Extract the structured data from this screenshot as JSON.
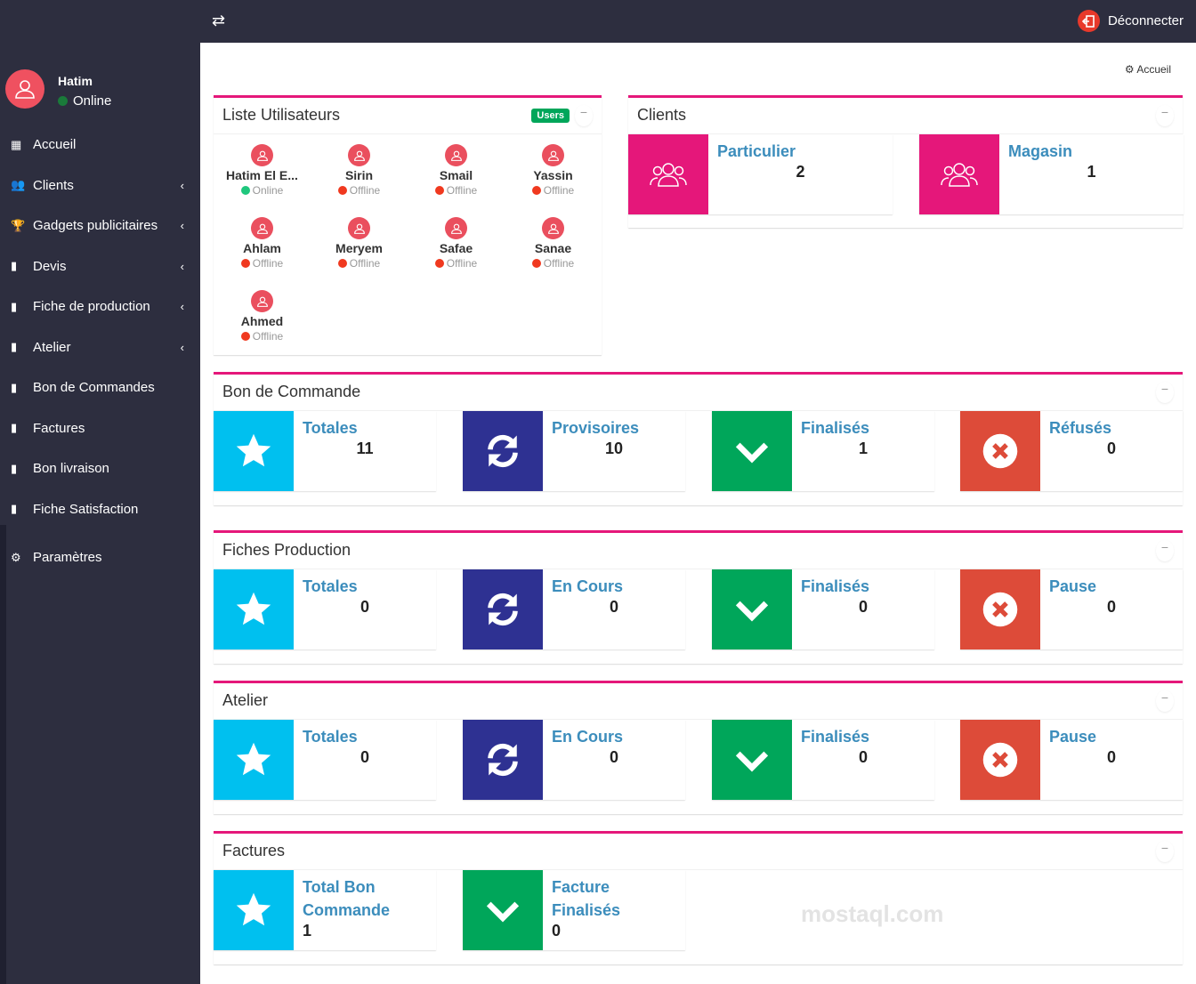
{
  "topbar": {
    "toggle_icon": "exchange-icon",
    "logout_label": "Déconnecter"
  },
  "user": {
    "name": "Hatim",
    "status": "Online"
  },
  "sidebar": {
    "items": [
      {
        "label": "Accueil",
        "icon": "th-icon",
        "chevron": false
      },
      {
        "label": "Clients",
        "icon": "users-icon",
        "chevron": true
      },
      {
        "label": "Gadgets publicitaires",
        "icon": "trophy-icon",
        "chevron": true
      },
      {
        "label": "Devis",
        "icon": "file-icon",
        "chevron": true
      },
      {
        "label": "Fiche de production",
        "icon": "file-icon",
        "chevron": true
      },
      {
        "label": "Atelier",
        "icon": "file-icon",
        "chevron": true
      },
      {
        "label": "Bon de Commandes",
        "icon": "file-icon",
        "chevron": false
      },
      {
        "label": "Factures",
        "icon": "file-icon",
        "chevron": false
      },
      {
        "label": "Bon livraison",
        "icon": "file-icon",
        "chevron": false
      },
      {
        "label": "Fiche Satisfaction",
        "icon": "file-icon",
        "chevron": false
      },
      {
        "label": "Paramètres",
        "icon": "gear-icon",
        "chevron": false
      }
    ]
  },
  "breadcrumb": "Accueil",
  "users_box": {
    "title": "Liste Utilisateurs",
    "badge": "Users",
    "users": [
      {
        "name": "Hatim El E...",
        "status": "Online"
      },
      {
        "name": "Sirin",
        "status": "Offline"
      },
      {
        "name": "Smail",
        "status": "Offline"
      },
      {
        "name": "Yassin",
        "status": "Offline"
      },
      {
        "name": "Ahlam",
        "status": "Offline"
      },
      {
        "name": "Meryem",
        "status": "Offline"
      },
      {
        "name": "Safae",
        "status": "Offline"
      },
      {
        "name": "Sanae",
        "status": "Offline"
      },
      {
        "name": "Ahmed",
        "status": "Offline"
      }
    ]
  },
  "clients_box": {
    "title": "Clients",
    "items": [
      {
        "label": "Particulier",
        "value": "2"
      },
      {
        "label": "Magasin",
        "value": "1"
      }
    ]
  },
  "bon_commande": {
    "title": "Bon de Commande",
    "items": [
      {
        "label": "Totales",
        "value": "11"
      },
      {
        "label": "Provisoires",
        "value": "10"
      },
      {
        "label": "Finalisés",
        "value": "1"
      },
      {
        "label": "Réfusés",
        "value": "0"
      }
    ]
  },
  "fiches_production": {
    "title": "Fiches Production",
    "items": [
      {
        "label": "Totales",
        "value": "0"
      },
      {
        "label": "En Cours",
        "value": "0"
      },
      {
        "label": "Finalisés",
        "value": "0"
      },
      {
        "label": "Pause",
        "value": "0"
      }
    ]
  },
  "atelier": {
    "title": "Atelier",
    "items": [
      {
        "label": "Totales",
        "value": "0"
      },
      {
        "label": "En Cours",
        "value": "0"
      },
      {
        "label": "Finalisés",
        "value": "0"
      },
      {
        "label": "Pause",
        "value": "0"
      }
    ]
  },
  "factures": {
    "title": "Factures",
    "items": [
      {
        "label": "Total Bon Commande",
        "value": "1"
      },
      {
        "label": "Facture Finalisés",
        "value": "0"
      }
    ]
  },
  "colors": {
    "sidebar": "#2d2e3f",
    "accent": "#e5177a",
    "aqua": "#00c0ef",
    "navy": "#2e3192",
    "green": "#00a65a",
    "red": "#dd4b39",
    "label": "#3c8dbc",
    "online": "#1fc77d",
    "offline": "#f0391f"
  },
  "watermark": "mostaql.com"
}
